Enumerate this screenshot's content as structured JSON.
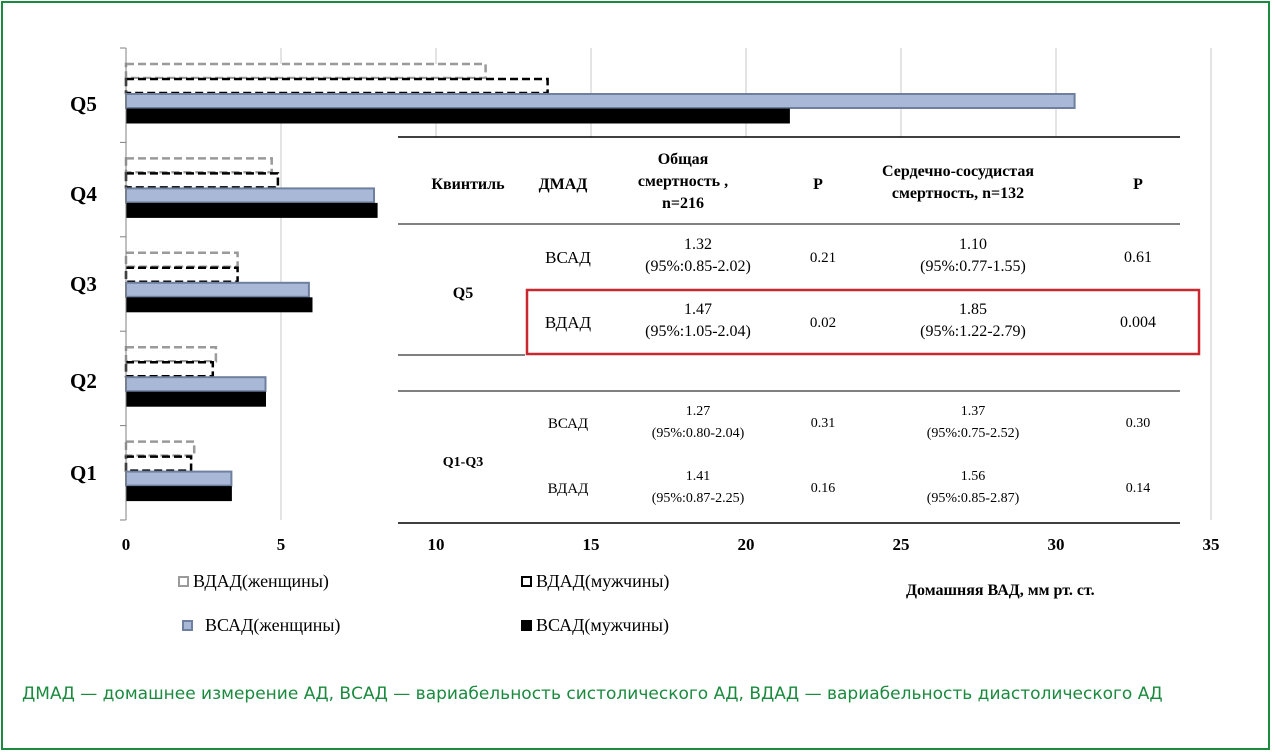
{
  "colors": {
    "frame": "#1a8a3e",
    "caption": "#1a8a3e",
    "dbp_women": "#9a9a9a",
    "dbp_men": "#000000",
    "sbp_women": "#a9b8d6",
    "sbp_men": "#000000",
    "highlight_box": "#c8282e"
  },
  "chart_data": {
    "type": "bar",
    "orientation": "horizontal",
    "categories": [
      "Q5",
      "Q4",
      "Q3",
      "Q2",
      "Q1"
    ],
    "series": [
      {
        "name": "ВДАД(женщины)",
        "values": [
          11.6,
          4.7,
          3.6,
          2.9,
          2.2
        ]
      },
      {
        "name": "ВДАД(мужчины)",
        "values": [
          13.6,
          4.9,
          3.6,
          2.8,
          2.1
        ]
      },
      {
        "name": "ВСАД(женщины)",
        "values": [
          30.6,
          8.0,
          5.9,
          4.5,
          3.4
        ]
      },
      {
        "name": "ВСАД(мужчины)",
        "values": [
          21.4,
          8.1,
          6.0,
          4.5,
          3.4
        ]
      }
    ],
    "x_ticks": [
      "0",
      "5",
      "10",
      "15",
      "20",
      "25",
      "30",
      "35"
    ],
    "xlim": [
      0,
      35
    ],
    "xlabel": "Домашняя ВАД, мм рт. ст.",
    "grid": true,
    "legend_position": "bottom-left"
  },
  "table": {
    "headers": {
      "quintile": "Квинтиль",
      "method": "ДМАД",
      "total_mortality": [
        "Общая",
        "смертность ,",
        "n=216"
      ],
      "p1": "Р",
      "cv_mortality": [
        "Сердечно-сосудистая",
        "смертность, n=132"
      ],
      "p2": "Р"
    },
    "groups": [
      {
        "quintile": "Q5",
        "rows": [
          {
            "method": "ВСАД",
            "total_hr": "1.32",
            "total_ci": "(95%:0.85-2.02)",
            "p1": "0.21",
            "cv_hr": "1.10",
            "cv_ci": "(95%:0.77-1.55)",
            "p2": "0.61"
          },
          {
            "method": "ВДАД",
            "total_hr": "1.47",
            "total_ci": "(95%:1.05-2.04)",
            "p1": "0.02",
            "cv_hr": "1.85",
            "cv_ci": "(95%:1.22-2.79)",
            "p2": "0.004"
          }
        ]
      },
      {
        "quintile": "Q1-Q3",
        "rows": [
          {
            "method": "ВСАД",
            "total_hr": "1.27",
            "total_ci": "(95%:0.80-2.04)",
            "p1": "0.31",
            "cv_hr": "1.37",
            "cv_ci": "(95%:0.75-2.52)",
            "p2": "0.30"
          },
          {
            "method": "ВДАД",
            "total_hr": "1.41",
            "total_ci": "(95%:0.87-2.25)",
            "p1": "0.16",
            "cv_hr": "1.56",
            "cv_ci": "(95%:0.85-2.87)",
            "p2": "0.14"
          }
        ]
      }
    ]
  },
  "caption": "ДМАД — домашнее измерение АД, ВСАД — вариабельность систолического АД, ВДАД — вариабельность диастолического АД"
}
